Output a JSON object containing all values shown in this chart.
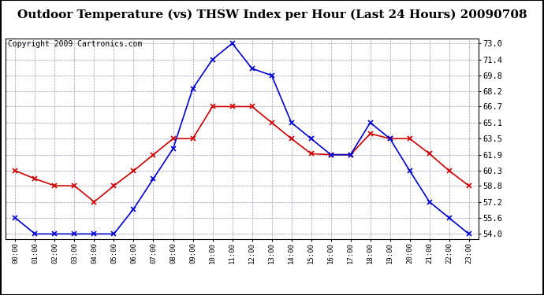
{
  "title": "Outdoor Temperature (vs) THSW Index per Hour (Last 24 Hours) 20090708",
  "copyright": "Copyright 2009 Cartronics.com",
  "x_labels": [
    "00:00",
    "01:00",
    "02:00",
    "03:00",
    "04:00",
    "05:00",
    "06:00",
    "07:00",
    "08:00",
    "09:00",
    "10:00",
    "11:00",
    "12:00",
    "13:00",
    "14:00",
    "15:00",
    "16:00",
    "17:00",
    "18:00",
    "19:00",
    "20:00",
    "21:00",
    "22:00",
    "23:00"
  ],
  "temp_data": [
    60.3,
    59.5,
    58.8,
    58.8,
    57.2,
    58.8,
    60.3,
    61.9,
    63.5,
    63.5,
    66.7,
    66.7,
    66.7,
    65.1,
    63.5,
    62.0,
    61.9,
    61.9,
    64.0,
    63.5,
    63.5,
    62.0,
    60.3,
    58.8
  ],
  "thsw_data": [
    55.6,
    54.0,
    54.0,
    54.0,
    54.0,
    54.0,
    56.5,
    59.5,
    62.5,
    68.5,
    71.4,
    73.0,
    70.5,
    69.8,
    65.1,
    63.5,
    61.9,
    61.9,
    65.1,
    63.5,
    60.3,
    57.2,
    55.6,
    54.0
  ],
  "y_ticks": [
    54.0,
    55.6,
    57.2,
    58.8,
    60.3,
    61.9,
    63.5,
    65.1,
    66.7,
    68.2,
    69.8,
    71.4,
    73.0
  ],
  "y_min": 53.5,
  "y_max": 73.5,
  "temp_color": "#cc0000",
  "thsw_color": "#0000cc",
  "bg_color": "#ffffff",
  "grid_color": "#9999bb",
  "title_fontsize": 11,
  "copyright_fontsize": 7
}
